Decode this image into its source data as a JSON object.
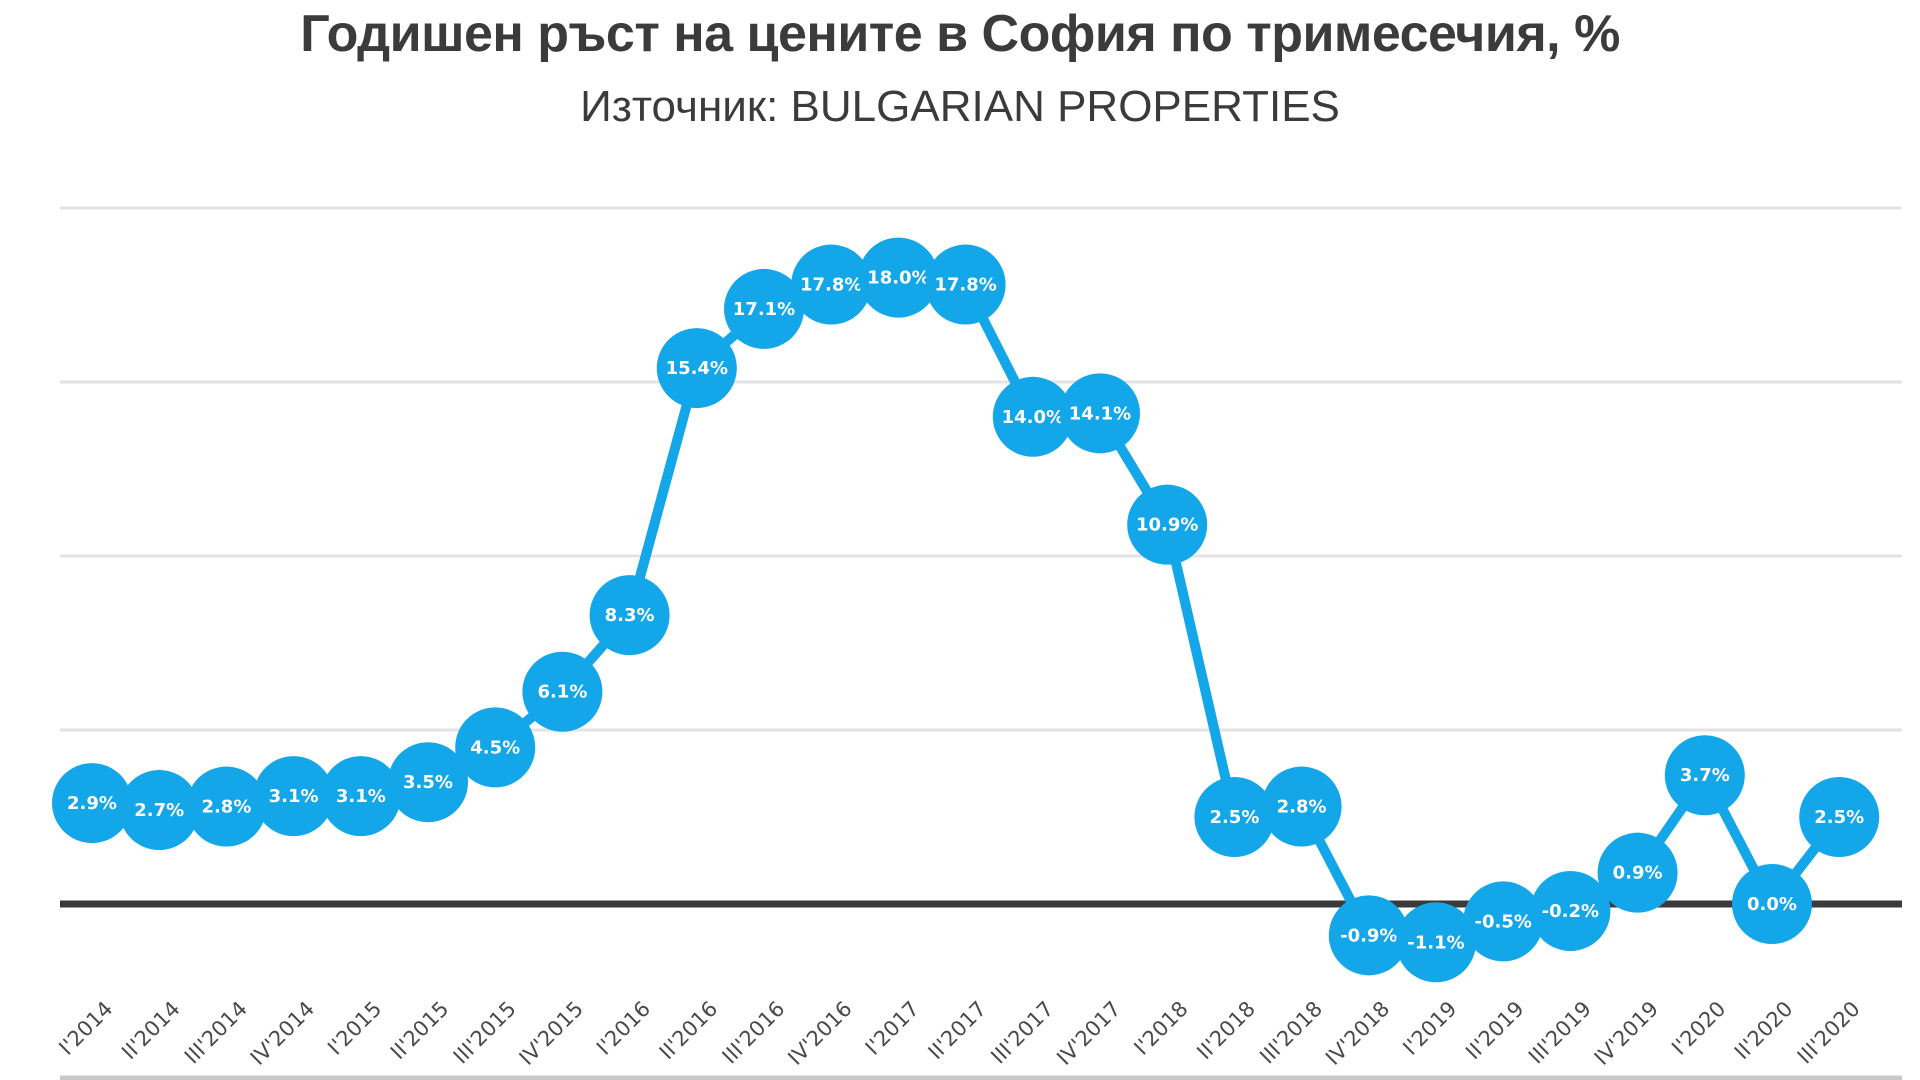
{
  "header": {
    "title": "Годишен ръст на цените в София по тримесечия, %",
    "subtitle": "Източник: BULGARIAN PROPERTIES"
  },
  "colors": {
    "series": "#13A6E8",
    "label": "#FFFFFF",
    "zero_line": "#3A3A3A",
    "grid": "#E3E3E3",
    "text": "#3B3B3B"
  },
  "chart_data": {
    "type": "line",
    "title": "Годишен ръст на цените в София по тримесечия, %",
    "subtitle": "Източник: BULGARIAN PROPERTIES",
    "xlabel": "",
    "ylabel": "",
    "ylim": [
      -5,
      20
    ],
    "grid": true,
    "gridlines": [
      0,
      5,
      10,
      15,
      20
    ],
    "legend": "none",
    "categories": [
      "I'2014",
      "II'2014",
      "III'2014",
      "IV'2014",
      "I'2015",
      "II'2015",
      "III'2015",
      "IV'2015",
      "I'2016",
      "II'2016",
      "III'2016",
      "IV'2016",
      "I'2017",
      "II'2017",
      "III'2017",
      "IV'2017",
      "I'2018",
      "II'2018",
      "III'2018",
      "IV'2018",
      "I'2019",
      "II'2019",
      "III'2019",
      "IV'2019",
      "I'2020",
      "II'2020",
      "III'2020"
    ],
    "series": [
      {
        "name": "Годишен ръст на цените, %",
        "values": [
          2.9,
          2.7,
          2.8,
          3.1,
          3.1,
          3.5,
          4.5,
          6.1,
          8.3,
          15.4,
          17.1,
          17.8,
          18.0,
          17.8,
          14.0,
          14.1,
          10.9,
          2.5,
          2.8,
          -0.9,
          -1.1,
          -0.5,
          -0.2,
          0.9,
          3.7,
          0.0,
          2.5
        ],
        "labels": [
          "2.9%",
          "2.7%",
          "2.8%",
          "3.1%",
          "3.1%",
          "3.5%",
          "4.5%",
          "6.1%",
          "8.3%",
          "15.4%",
          "17.1%",
          "17.8%",
          "18.0%",
          "17.8%",
          "14.0%",
          "14.1%",
          "10.9%",
          "2.5%",
          "2.8%",
          "-0.9%",
          "-1.1%",
          "-0.5%",
          "-0.2%",
          "0.9%",
          "3.7%",
          "0.0%",
          "2.5%"
        ]
      }
    ]
  }
}
